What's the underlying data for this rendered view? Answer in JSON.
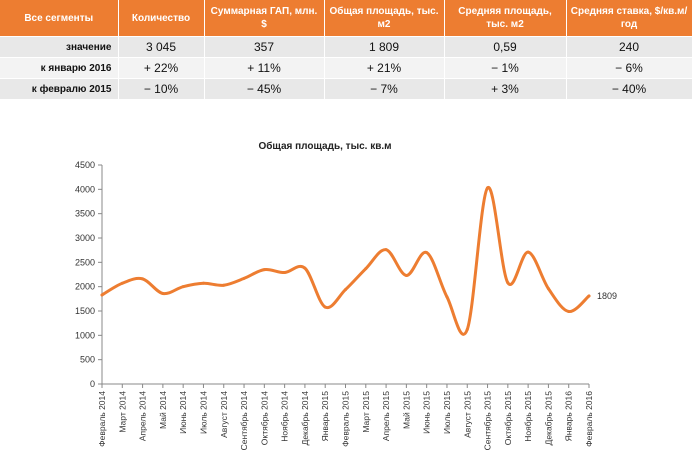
{
  "table": {
    "headers": [
      "Все сегменты",
      "Количество",
      "Суммарная ГАП, млн. $",
      "Общая площадь, тыс. м2",
      "Средняя площадь, тыс. м2",
      "Средняя ставка, $/кв.м/год"
    ],
    "rows": [
      {
        "label": "значение",
        "cells": [
          "3 045",
          "357",
          "1 809",
          "0,59",
          "240"
        ]
      },
      {
        "label": "к январю 2016",
        "cells": [
          "+ 22%",
          "+ 11%",
          "+ 21%",
          "− 1%",
          "− 6%"
        ]
      },
      {
        "label": "к февралю 2015",
        "cells": [
          "− 10%",
          "− 45%",
          "− 7%",
          "+ 3%",
          "− 40%"
        ]
      }
    ]
  },
  "chart_data": {
    "type": "line",
    "title": "Общая площадь, тыс. кв.м",
    "xlabel": "",
    "ylabel": "",
    "ylim": [
      0,
      4500
    ],
    "yticks": [
      0,
      500,
      1000,
      1500,
      2000,
      2500,
      3000,
      3500,
      4000,
      4500
    ],
    "grid": false,
    "color": "#ed7d31",
    "categories": [
      "Февраль 2014",
      "Март 2014",
      "Апрель 2014",
      "Май 2014",
      "Июнь 2014",
      "Июль 2014",
      "Август 2014",
      "Сентябрь 2014",
      "Октябрь 2014",
      "Ноябрь 2014",
      "Декабрь 2014",
      "Январь 2015",
      "Февраль 2015",
      "Март 2015",
      "Апрель 2015",
      "Май 2015",
      "Июнь 2015",
      "Июль 2015",
      "Август 2015",
      "Сентябрь 2015",
      "Октябрь 2015",
      "Ноябрь 2015",
      "Декабрь 2015",
      "Январь 2016",
      "Февраль 2016"
    ],
    "values": [
      1830,
      2070,
      2160,
      1860,
      2000,
      2070,
      2030,
      2170,
      2350,
      2290,
      2380,
      1580,
      1940,
      2370,
      2760,
      2230,
      2700,
      1790,
      1120,
      4030,
      2080,
      2710,
      1960,
      1490,
      1809
    ],
    "end_label": "1809"
  }
}
